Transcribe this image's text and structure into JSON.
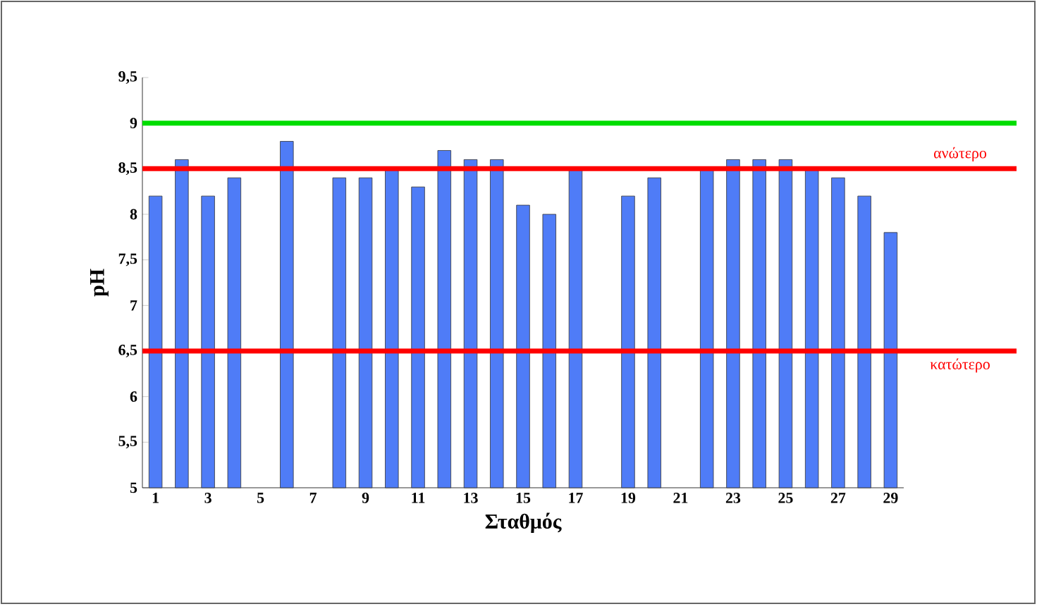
{
  "chart_data": {
    "type": "bar",
    "xlabel": "Σταθμός",
    "ylabel": "pH",
    "categories": [
      "1",
      null,
      "3",
      null,
      "5",
      null,
      "7",
      null,
      "9",
      null,
      "11",
      null,
      "13",
      null,
      "15",
      null,
      "17",
      null,
      "19",
      null,
      "21",
      null,
      "23",
      null,
      "25",
      null,
      "27",
      null,
      "29"
    ],
    "values": [
      8.2,
      8.6,
      8.2,
      8.4,
      null,
      8.8,
      null,
      8.4,
      8.4,
      8.5,
      8.3,
      8.7,
      8.6,
      8.6,
      8.1,
      8.0,
      8.5,
      null,
      8.2,
      8.4,
      null,
      8.5,
      8.6,
      8.6,
      8.6,
      8.5,
      8.4,
      8.2,
      7.8
    ],
    "color": "#4f7cf7",
    "ylim": [
      5,
      9.5
    ],
    "yticks": [
      5,
      {
        "value": 5.5,
        "label": "5,5"
      },
      6,
      {
        "value": 6.5,
        "label": "6,5"
      },
      7,
      {
        "value": 7.5,
        "label": "7,5"
      },
      8,
      {
        "value": 8.5,
        "label": "8,5"
      },
      9,
      {
        "value": 9.5,
        "label": "9,5"
      }
    ],
    "ref_lines": [
      {
        "axis": "y",
        "value": 9,
        "color": "#00dd00"
      },
      {
        "axis": "y",
        "value": 8.5,
        "color": "#ff0000",
        "label": "ανώτερο"
      },
      {
        "axis": "y",
        "value": 6.5,
        "color": "#ff0000",
        "label": "κατώτερο"
      }
    ],
    "grid": false
  }
}
